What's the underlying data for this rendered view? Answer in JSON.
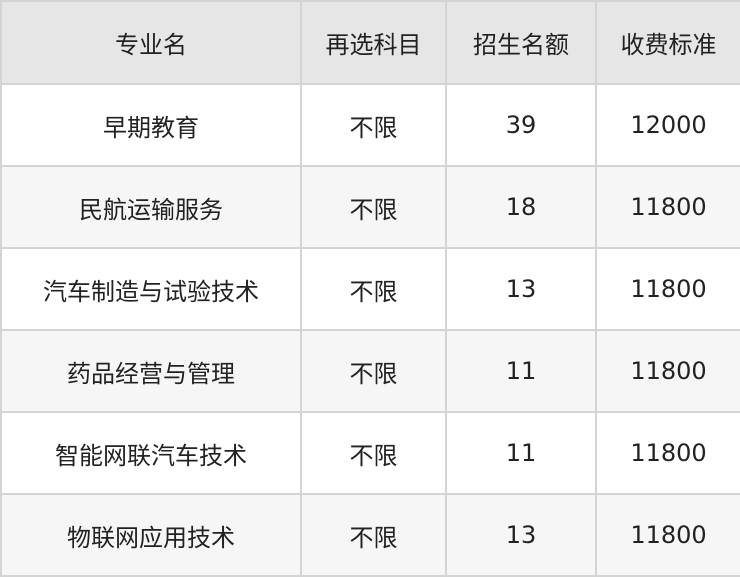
{
  "headers": [
    "专业名",
    "再选科目",
    "招生名额",
    "收费标准"
  ],
  "rows": [
    [
      "早期教育",
      "不限",
      "39",
      "12000"
    ],
    [
      "民航运输服务",
      "不限",
      "18",
      "11800"
    ],
    [
      "汽车制造与试验技术",
      "不限",
      "13",
      "11800"
    ],
    [
      "药品经营与管理",
      "不限",
      "11",
      "11800"
    ],
    [
      "智能网联汽车技术",
      "不限",
      "11",
      "11800"
    ],
    [
      "物联网应用技术",
      "不限",
      "13",
      "11800"
    ]
  ]
}
